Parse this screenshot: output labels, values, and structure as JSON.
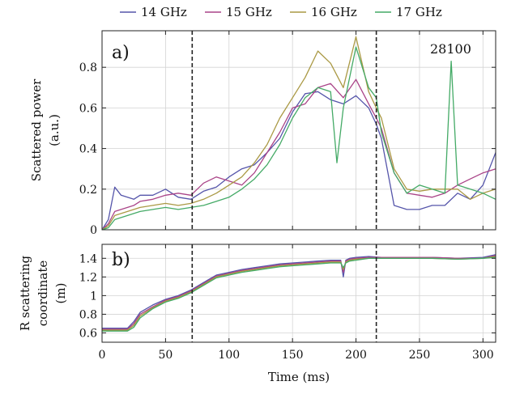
{
  "legend": [
    {
      "label": "14 GHz",
      "color": "#5555aa"
    },
    {
      "label": "15 GHz",
      "color": "#aa4488"
    },
    {
      "label": "16 GHz",
      "color": "#aa9944"
    },
    {
      "label": "17 GHz",
      "color": "#44aa66"
    }
  ],
  "chart_data": [
    {
      "type": "line",
      "panel_label": "a)",
      "annotation": "28100",
      "ylabel_lines": [
        "Scattered power",
        "(a.u.)"
      ],
      "xlim": [
        0,
        310
      ],
      "ylim": [
        0,
        0.98
      ],
      "yticks": [
        0,
        0.2,
        0.4,
        0.6,
        0.8
      ],
      "ytick_labels": [
        "0",
        "0.2",
        "0.4",
        "0.6",
        "0.8"
      ],
      "xticks": [
        0,
        50,
        100,
        150,
        200,
        250,
        300
      ],
      "grid": true,
      "vlines": [
        71,
        216
      ],
      "series": [
        {
          "name": "14 GHz",
          "color": "#5555aa",
          "x": [
            0,
            5,
            10,
            15,
            20,
            25,
            30,
            40,
            50,
            60,
            70,
            80,
            90,
            100,
            110,
            120,
            130,
            140,
            150,
            160,
            170,
            180,
            190,
            200,
            210,
            216,
            220,
            230,
            240,
            250,
            260,
            270,
            280,
            290,
            300,
            310
          ],
          "y": [
            0,
            0.05,
            0.21,
            0.17,
            0.16,
            0.15,
            0.17,
            0.17,
            0.2,
            0.16,
            0.15,
            0.19,
            0.21,
            0.26,
            0.3,
            0.32,
            0.38,
            0.45,
            0.58,
            0.67,
            0.68,
            0.64,
            0.62,
            0.66,
            0.6,
            0.52,
            0.45,
            0.12,
            0.1,
            0.1,
            0.12,
            0.12,
            0.18,
            0.15,
            0.22,
            0.38
          ]
        },
        {
          "name": "15 GHz",
          "color": "#aa4488",
          "x": [
            0,
            5,
            10,
            15,
            20,
            25,
            30,
            40,
            50,
            60,
            70,
            80,
            90,
            100,
            110,
            120,
            130,
            140,
            150,
            160,
            170,
            180,
            190,
            200,
            210,
            216,
            220,
            230,
            240,
            250,
            260,
            270,
            280,
            290,
            300,
            310
          ],
          "y": [
            0,
            0.03,
            0.09,
            0.1,
            0.11,
            0.12,
            0.14,
            0.15,
            0.17,
            0.18,
            0.17,
            0.23,
            0.26,
            0.24,
            0.22,
            0.28,
            0.38,
            0.48,
            0.6,
            0.62,
            0.7,
            0.72,
            0.65,
            0.74,
            0.62,
            0.55,
            0.5,
            0.28,
            0.18,
            0.17,
            0.16,
            0.18,
            0.22,
            0.25,
            0.28,
            0.3
          ]
        },
        {
          "name": "16 GHz",
          "color": "#aa9944",
          "x": [
            0,
            5,
            10,
            15,
            20,
            25,
            30,
            40,
            50,
            60,
            70,
            80,
            90,
            100,
            110,
            120,
            130,
            140,
            150,
            160,
            170,
            180,
            190,
            200,
            210,
            216,
            220,
            230,
            240,
            250,
            260,
            270,
            280,
            290,
            300,
            310
          ],
          "y": [
            0,
            0.02,
            0.07,
            0.08,
            0.09,
            0.1,
            0.11,
            0.12,
            0.13,
            0.12,
            0.13,
            0.15,
            0.18,
            0.22,
            0.26,
            0.33,
            0.42,
            0.55,
            0.65,
            0.75,
            0.88,
            0.82,
            0.7,
            0.95,
            0.68,
            0.6,
            0.55,
            0.3,
            0.2,
            0.19,
            0.2,
            0.2,
            0.2,
            0.15,
            0.18,
            0.2
          ]
        },
        {
          "name": "17 GHz",
          "color": "#44aa66",
          "x": [
            0,
            5,
            10,
            15,
            20,
            25,
            30,
            40,
            50,
            60,
            70,
            80,
            90,
            100,
            110,
            120,
            130,
            140,
            150,
            160,
            170,
            180,
            185,
            190,
            200,
            210,
            216,
            220,
            230,
            240,
            250,
            260,
            270,
            275,
            280,
            290,
            300,
            310
          ],
          "y": [
            0,
            0.01,
            0.05,
            0.06,
            0.07,
            0.08,
            0.09,
            0.1,
            0.11,
            0.1,
            0.11,
            0.12,
            0.14,
            0.16,
            0.2,
            0.25,
            0.32,
            0.42,
            0.55,
            0.65,
            0.7,
            0.68,
            0.33,
            0.6,
            0.9,
            0.7,
            0.65,
            0.48,
            0.28,
            0.18,
            0.22,
            0.2,
            0.18,
            0.83,
            0.22,
            0.2,
            0.18,
            0.15
          ]
        }
      ]
    },
    {
      "type": "line",
      "panel_label": "b)",
      "ylabel_lines": [
        "R scattering",
        "coordinate",
        "(m)"
      ],
      "xlabel": "Time (ms)",
      "xlim": [
        0,
        310
      ],
      "ylim": [
        0.5,
        1.55
      ],
      "yticks": [
        0.6,
        0.8,
        1.0,
        1.2,
        1.4
      ],
      "ytick_labels": [
        "0.6",
        "0.8",
        "1",
        "1.2",
        "1.4"
      ],
      "xticks": [
        0,
        50,
        100,
        150,
        200,
        250,
        300
      ],
      "xtick_labels": [
        "0",
        "50",
        "100",
        "150",
        "200",
        "250",
        "300"
      ],
      "grid": true,
      "vlines": [
        71,
        216
      ],
      "series": [
        {
          "name": "14 GHz",
          "color": "#5555aa",
          "x": [
            0,
            20,
            25,
            30,
            40,
            50,
            60,
            70,
            80,
            90,
            100,
            110,
            120,
            130,
            140,
            150,
            160,
            170,
            180,
            188,
            190,
            192,
            195,
            200,
            210,
            220,
            240,
            260,
            280,
            300,
            310
          ],
          "y": [
            0.65,
            0.65,
            0.72,
            0.82,
            0.9,
            0.96,
            1.0,
            1.06,
            1.14,
            1.22,
            1.25,
            1.28,
            1.3,
            1.32,
            1.34,
            1.35,
            1.36,
            1.37,
            1.38,
            1.38,
            1.2,
            1.38,
            1.4,
            1.41,
            1.42,
            1.41,
            1.41,
            1.41,
            1.4,
            1.41,
            1.44
          ]
        },
        {
          "name": "15 GHz",
          "color": "#aa4488",
          "x": [
            0,
            20,
            25,
            30,
            40,
            50,
            60,
            70,
            80,
            90,
            100,
            110,
            120,
            130,
            140,
            150,
            160,
            170,
            180,
            188,
            190,
            192,
            195,
            200,
            210,
            220,
            240,
            260,
            280,
            300,
            310
          ],
          "y": [
            0.64,
            0.64,
            0.7,
            0.8,
            0.88,
            0.95,
            0.99,
            1.05,
            1.13,
            1.21,
            1.24,
            1.27,
            1.29,
            1.31,
            1.33,
            1.34,
            1.35,
            1.36,
            1.37,
            1.37,
            1.25,
            1.37,
            1.39,
            1.4,
            1.41,
            1.41,
            1.41,
            1.41,
            1.4,
            1.4,
            1.43
          ]
        },
        {
          "name": "16 GHz",
          "color": "#aa9944",
          "x": [
            0,
            20,
            25,
            30,
            40,
            50,
            60,
            70,
            80,
            90,
            100,
            110,
            120,
            130,
            140,
            150,
            160,
            170,
            180,
            188,
            190,
            192,
            195,
            200,
            210,
            220,
            240,
            260,
            280,
            300,
            310
          ],
          "y": [
            0.63,
            0.63,
            0.68,
            0.78,
            0.87,
            0.94,
            0.98,
            1.04,
            1.12,
            1.2,
            1.23,
            1.26,
            1.28,
            1.3,
            1.32,
            1.33,
            1.34,
            1.35,
            1.36,
            1.36,
            1.28,
            1.36,
            1.38,
            1.39,
            1.4,
            1.4,
            1.4,
            1.4,
            1.39,
            1.4,
            1.42
          ]
        },
        {
          "name": "17 GHz",
          "color": "#44aa66",
          "x": [
            0,
            20,
            25,
            30,
            40,
            50,
            60,
            70,
            80,
            90,
            100,
            110,
            120,
            130,
            140,
            150,
            160,
            170,
            180,
            188,
            190,
            192,
            195,
            200,
            210,
            220,
            240,
            260,
            280,
            300,
            310
          ],
          "y": [
            0.62,
            0.62,
            0.66,
            0.76,
            0.86,
            0.93,
            0.97,
            1.03,
            1.11,
            1.19,
            1.22,
            1.25,
            1.27,
            1.29,
            1.31,
            1.32,
            1.33,
            1.34,
            1.35,
            1.35,
            1.3,
            1.35,
            1.37,
            1.38,
            1.4,
            1.4,
            1.4,
            1.4,
            1.39,
            1.4,
            1.41
          ]
        }
      ]
    }
  ]
}
